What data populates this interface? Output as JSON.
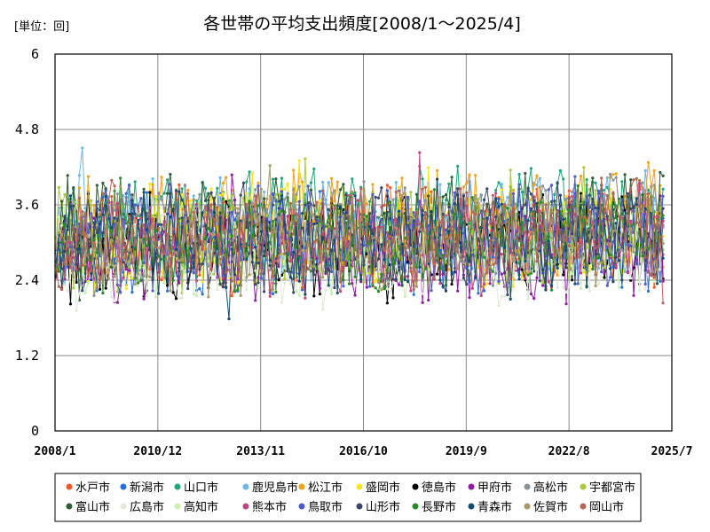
{
  "chart_data": {
    "type": "line",
    "title": "各世帯の平均支出頻度[2008/1～2025/4]",
    "unit_label": "[単位：回]",
    "xlabel": "",
    "ylabel": "",
    "ylim": [
      0,
      6
    ],
    "yticks": [
      "0",
      "1.2",
      "2.4",
      "3.6",
      "4.8",
      "6"
    ],
    "ytick_values": [
      0,
      1.2,
      2.4,
      3.6,
      4.8,
      6
    ],
    "x_range": [
      "2008/1",
      "2025/7"
    ],
    "xticks": [
      "2008/1",
      "2010/12",
      "2013/11",
      "2016/10",
      "2019/9",
      "2022/8",
      "2025/7"
    ],
    "grid": "vertical and horizontal at ticks",
    "legend_position": "bottom",
    "series": [
      {
        "name": "水戸市",
        "color": "#F1592A",
        "seed": 11,
        "base": 3.05
      },
      {
        "name": "新潟市",
        "color": "#2A6FD4",
        "seed": 23,
        "base": 3.0
      },
      {
        "name": "山口市",
        "color": "#1FA57A",
        "seed": 37,
        "base": 3.35
      },
      {
        "name": "鹿児島市",
        "color": "#6BB7E8",
        "seed": 41,
        "base": 3.2
      },
      {
        "name": "松江市",
        "color": "#F2A21B",
        "seed": 53,
        "base": 3.3
      },
      {
        "name": "盛岡市",
        "color": "#F7E51F",
        "seed": 67,
        "base": 3.1
      },
      {
        "name": "徳島市",
        "color": "#000000",
        "seed": 71,
        "base": 2.9
      },
      {
        "name": "甲府市",
        "color": "#8E1CA2",
        "seed": 83,
        "base": 2.85
      },
      {
        "name": "高松市",
        "color": "#8A939B",
        "seed": 97,
        "base": 3.15
      },
      {
        "name": "宇都宮市",
        "color": "#A7C93A",
        "seed": 101,
        "base": 3.05
      },
      {
        "name": "富山市",
        "color": "#2F5D34",
        "seed": 113,
        "base": 3.2
      },
      {
        "name": "広島市",
        "color": "#E1EAD8",
        "seed": 127,
        "base": 2.8
      },
      {
        "name": "高知市",
        "color": "#C8F0B0",
        "seed": 131,
        "base": 3.0
      },
      {
        "name": "熊本市",
        "color": "#C0457B",
        "seed": 149,
        "base": 2.95
      },
      {
        "name": "鳥取市",
        "color": "#4C5BC7",
        "seed": 151,
        "base": 3.1
      },
      {
        "name": "山形市",
        "color": "#3B4568",
        "seed": 163,
        "base": 3.05
      },
      {
        "name": "長野市",
        "color": "#2A8A2A",
        "seed": 173,
        "base": 3.0
      },
      {
        "name": "青森市",
        "color": "#174B6E",
        "seed": 181,
        "base": 2.95
      },
      {
        "name": "佐賀市",
        "color": "#A79A66",
        "seed": 191,
        "base": 3.0
      },
      {
        "name": "岡山市",
        "color": "#B5645A",
        "seed": 199,
        "base": 3.1
      }
    ]
  }
}
